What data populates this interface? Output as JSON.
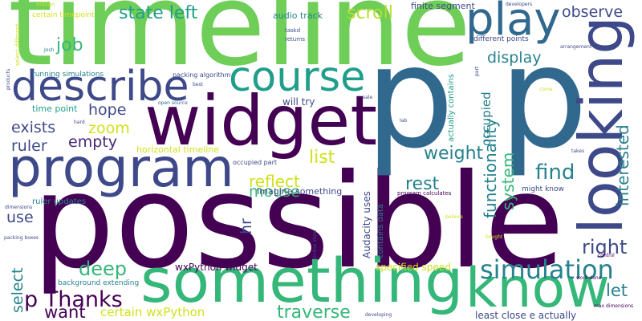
{
  "words": [
    "possible",
    "timeline",
    "p p",
    "widget",
    "program",
    "something",
    "know",
    "looking",
    "play",
    "course",
    "describe",
    "state left",
    "scroll",
    "job",
    "observe",
    "display",
    "hope",
    "exists",
    "zoom",
    "ruler",
    "empty",
    "list",
    "weight",
    "find",
    "reflect",
    "rest",
    "mouse",
    "interested",
    "functionality",
    "system",
    "occupied",
    "hr",
    "use",
    "right",
    "deep",
    "simulation",
    "let",
    "select",
    "p Thanks",
    "want",
    "certain wxPython",
    "traverse",
    "wxPython widget",
    "specified speed",
    "Audacity uses",
    "contains data",
    "actually contains",
    "least close e actually",
    "Imagine something",
    "will try",
    "audio track",
    "finite segment",
    "different points",
    "time point",
    "horizontal timeline",
    "ruler updates",
    "running simulations",
    "certain timepoint",
    "million",
    "packing algorithm",
    "background extending",
    "occupied part",
    "program calculates",
    "might know",
    "max dimensions",
    "taskd",
    "returns",
    "lab",
    "sale",
    "open source",
    "best",
    "hard",
    "Josh",
    "products",
    "select different",
    "dimensions",
    "packing boxes",
    "online store",
    "developing",
    "work done",
    "control",
    "bought",
    "believe",
    "takes",
    "arrangement",
    "developers",
    "part",
    "come"
  ]
}
